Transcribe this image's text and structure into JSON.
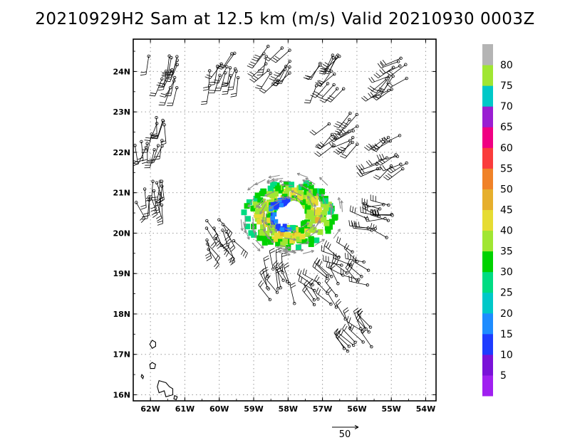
{
  "chart_data": {
    "type": "scatter",
    "title": "20210929H2 Sam at 12.5 km (m/s) Valid 20210930 0003Z",
    "xlabel": "",
    "ylabel": "",
    "x_range": [
      -62.5,
      -53.7
    ],
    "y_range": [
      15.85,
      24.8
    ],
    "x_ticks": [
      {
        "value": -62,
        "label": "62W"
      },
      {
        "value": -61,
        "label": "61W"
      },
      {
        "value": -60,
        "label": "60W"
      },
      {
        "value": -59,
        "label": "59W"
      },
      {
        "value": -58,
        "label": "58W"
      },
      {
        "value": -57,
        "label": "57W"
      },
      {
        "value": -56,
        "label": "56W"
      },
      {
        "value": -55,
        "label": "55W"
      },
      {
        "value": -54,
        "label": "54W"
      }
    ],
    "y_ticks": [
      {
        "value": 16,
        "label": "16N"
      },
      {
        "value": 17,
        "label": "17N"
      },
      {
        "value": 18,
        "label": "18N"
      },
      {
        "value": 19,
        "label": "19N"
      },
      {
        "value": 20,
        "label": "20N"
      },
      {
        "value": 21,
        "label": "21N"
      },
      {
        "value": 22,
        "label": "22N"
      },
      {
        "value": 23,
        "label": "23N"
      },
      {
        "value": 24,
        "label": "24N"
      }
    ],
    "grid": true,
    "center": {
      "lon": -57.95,
      "lat": 20.45
    },
    "colorbar": {
      "labels": [
        "5",
        "10",
        "15",
        "20",
        "25",
        "30",
        "35",
        "40",
        "45",
        "50",
        "55",
        "60",
        "65",
        "70",
        "75",
        "80"
      ],
      "colors": [
        "#a020f0",
        "#7a12d8",
        "#1e3cff",
        "#1e8cff",
        "#00c8c8",
        "#00dc82",
        "#00d200",
        "#a0e632",
        "#e6dc32",
        "#e6af2d",
        "#f08228",
        "#fa3c3c",
        "#f00082",
        "#9a1ed2",
        "#00c8c8",
        "#a0e632",
        "#b4b4b4"
      ]
    },
    "reference_vector": {
      "label": "50",
      "value": 50
    },
    "barb_series": [
      {
        "name": "",
        "lon": -61.6,
        "lat": 24.0,
        "wspd_ms": 20,
        "wdir_deg": 200
      },
      {
        "name": "",
        "lon": -59.9,
        "lat": 24.1,
        "wspd_ms": 20,
        "wdir_deg": 200
      },
      {
        "name": "",
        "lon": -58.3,
        "lat": 24.2,
        "wspd_ms": 25,
        "wdir_deg": 210
      },
      {
        "name": "",
        "lon": -56.8,
        "lat": 24.0,
        "wspd_ms": 25,
        "wdir_deg": 220
      },
      {
        "name": "",
        "lon": -55.0,
        "lat": 23.9,
        "wspd_ms": 20,
        "wdir_deg": 230
      },
      {
        "name": "",
        "lon": -62.0,
        "lat": 22.5,
        "wspd_ms": 20,
        "wdir_deg": 190
      },
      {
        "name": "",
        "lon": -56.4,
        "lat": 22.6,
        "wspd_ms": 25,
        "wdir_deg": 230
      },
      {
        "name": "",
        "lon": -55.0,
        "lat": 22.0,
        "wspd_ms": 25,
        "wdir_deg": 240
      },
      {
        "name": "",
        "lon": -62.0,
        "lat": 21.0,
        "wspd_ms": 20,
        "wdir_deg": 170
      },
      {
        "name": "",
        "lon": -60.0,
        "lat": 20.0,
        "wspd_ms": 25,
        "wdir_deg": 150
      },
      {
        "name": "",
        "lon": -55.3,
        "lat": 20.3,
        "wspd_ms": 25,
        "wdir_deg": 280
      },
      {
        "name": "",
        "lon": -56.1,
        "lat": 19.1,
        "wspd_ms": 25,
        "wdir_deg": 300
      },
      {
        "name": "",
        "lon": -56.9,
        "lat": 18.6,
        "wspd_ms": 20,
        "wdir_deg": 320
      },
      {
        "name": "",
        "lon": -58.2,
        "lat": 18.7,
        "wspd_ms": 20,
        "wdir_deg": 340
      },
      {
        "name": "",
        "lon": -56.0,
        "lat": 17.5,
        "wspd_ms": 20,
        "wdir_deg": 320
      }
    ]
  }
}
